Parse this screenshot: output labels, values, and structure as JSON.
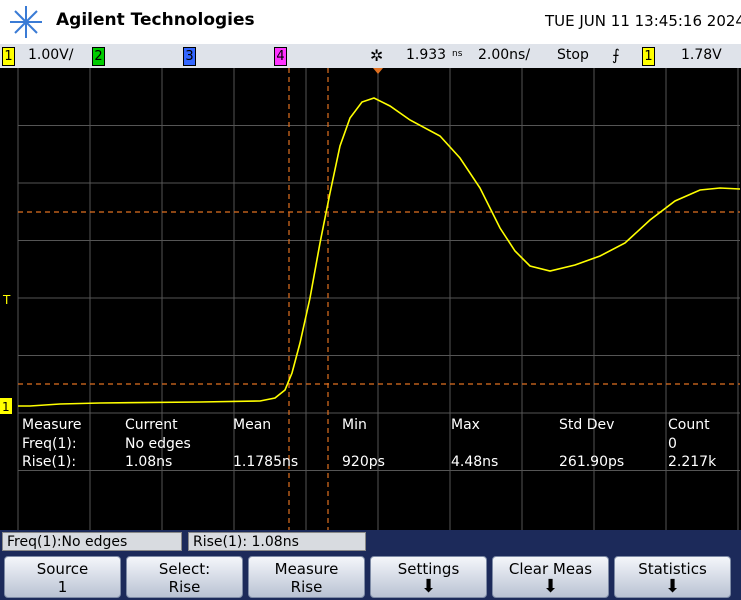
{
  "header": {
    "brand": "Agilent Technologies",
    "datetime": "TUE JUN 11 13:45:16 2024"
  },
  "status": {
    "ch1": "1",
    "ch1_scale": "1.00V/",
    "ch2": "2",
    "ch3": "3",
    "ch4": "4",
    "delay": "1.933",
    "delay_unit": "ns",
    "timebase": "2.00ns/",
    "run_state": "Stop",
    "trig_source": "1",
    "trig_level": "1.78V"
  },
  "markers": {
    "ground": "1",
    "trigger": "T"
  },
  "measurements": {
    "headers": [
      "Measure",
      "Current",
      "Mean",
      "Min",
      "Max",
      "Std Dev",
      "Count"
    ],
    "rows": [
      [
        "Freq(1):",
        "No edges",
        "",
        "",
        "",
        "",
        "0"
      ],
      [
        "Rise(1):",
        "1.08ns",
        "1.1785ns",
        "920ps",
        "4.48ns",
        "261.90ps",
        "2.217k"
      ]
    ]
  },
  "readouts": [
    "Freq(1):No edges",
    "Rise(1): 1.08ns"
  ],
  "softkeys": [
    [
      "Source",
      "1"
    ],
    [
      "Select:",
      "Rise"
    ],
    [
      "Measure",
      "Rise"
    ],
    [
      "Settings"
    ],
    [
      "Clear Meas"
    ],
    [
      "Statistics"
    ]
  ]
}
